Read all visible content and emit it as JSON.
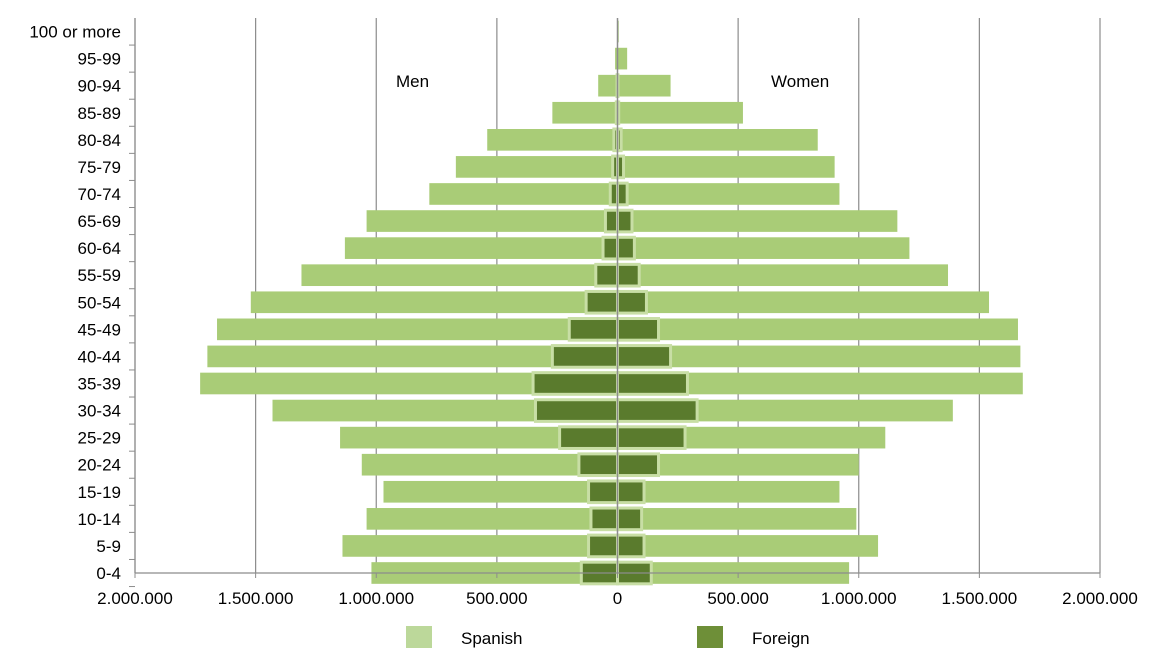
{
  "chart_data": {
    "type": "bar",
    "orientation": "horizontal",
    "layout": "population-pyramid",
    "categories": [
      "0-4",
      "5-9",
      "10-14",
      "15-19",
      "20-24",
      "25-29",
      "30-34",
      "35-39",
      "40-44",
      "45-49",
      "50-54",
      "55-59",
      "60-64",
      "65-69",
      "70-74",
      "75-79",
      "80-84",
      "85-89",
      "90-94",
      "95-99",
      "100 or more"
    ],
    "series": [
      {
        "name": "Spanish",
        "color": "#a9cc77",
        "men": [
          1020000,
          1140000,
          1040000,
          970000,
          1060000,
          1150000,
          1430000,
          1730000,
          1700000,
          1660000,
          1520000,
          1310000,
          1130000,
          1040000,
          780000,
          670000,
          540000,
          270000,
          80000,
          10000,
          2000
        ],
        "women": [
          960000,
          1080000,
          990000,
          920000,
          1000000,
          1110000,
          1390000,
          1680000,
          1670000,
          1660000,
          1540000,
          1370000,
          1210000,
          1160000,
          920000,
          900000,
          830000,
          520000,
          220000,
          40000,
          5000
        ]
      },
      {
        "name": "Foreign",
        "color": "#5a7b2d",
        "men": [
          150000,
          120000,
          110000,
          120000,
          160000,
          240000,
          340000,
          350000,
          270000,
          200000,
          130000,
          90000,
          60000,
          50000,
          30000,
          20000,
          15000,
          5000,
          2000,
          0,
          0
        ],
        "women": [
          140000,
          110000,
          100000,
          110000,
          170000,
          280000,
          330000,
          290000,
          220000,
          170000,
          120000,
          90000,
          70000,
          60000,
          40000,
          25000,
          15000,
          5000,
          2000,
          0,
          0
        ]
      }
    ],
    "xlim": [
      -2000000,
      2000000
    ],
    "xticks": [
      -2000000,
      -1500000,
      -1000000,
      -500000,
      0,
      500000,
      1000000,
      1500000,
      2000000
    ],
    "xtick_labels": [
      "2.000.000",
      "1.500.000",
      "1.000.000",
      "500.000",
      "0",
      "500.000",
      "1.000.000",
      "1.500.000",
      "2.000.000"
    ],
    "annotations": {
      "left": "Men",
      "right": "Women"
    },
    "grid": true,
    "legend_position": "bottom"
  }
}
